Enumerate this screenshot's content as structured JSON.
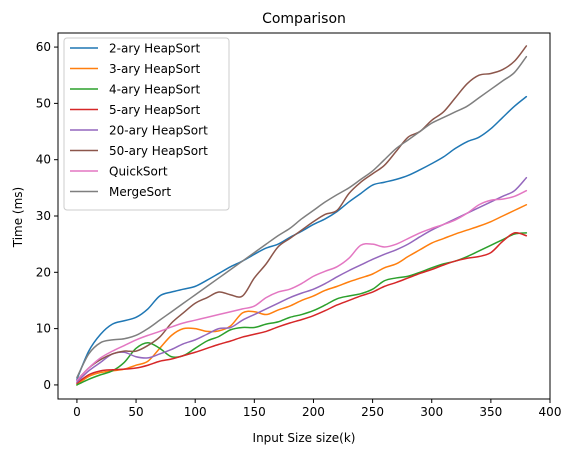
{
  "chart_data": {
    "type": "line",
    "title": "Comparison",
    "xlabel": "Input Size size(k)",
    "ylabel": "Time (ms)",
    "xlim": [
      -16,
      400
    ],
    "ylim": [
      -2.5,
      62.5
    ],
    "xticks": [
      0,
      50,
      100,
      150,
      200,
      250,
      300,
      350,
      400
    ],
    "yticks": [
      0,
      10,
      20,
      30,
      40,
      50,
      60
    ],
    "grid": false,
    "legend_position": "upper left",
    "x": [
      0,
      10,
      20,
      30,
      40,
      50,
      60,
      70,
      80,
      90,
      100,
      110,
      120,
      130,
      140,
      150,
      160,
      170,
      180,
      190,
      200,
      210,
      220,
      230,
      240,
      250,
      260,
      270,
      280,
      290,
      300,
      310,
      320,
      330,
      340,
      350,
      360,
      370,
      380
    ],
    "series": [
      {
        "name": "2-ary HeapSort",
        "color": "#1f77b4",
        "values": [
          1.0,
          6.0,
          9.0,
          10.8,
          11.4,
          12.0,
          13.5,
          15.8,
          16.5,
          17.0,
          17.5,
          18.6,
          19.8,
          21.0,
          22.0,
          23.2,
          24.3,
          25.0,
          26.2,
          27.3,
          28.5,
          29.5,
          30.8,
          32.5,
          34.0,
          35.5,
          36.0,
          36.5,
          37.2,
          38.2,
          39.3,
          40.5,
          42.0,
          43.2,
          44.0,
          45.5,
          47.5,
          49.5,
          51.2
        ]
      },
      {
        "name": "3-ary HeapSort",
        "color": "#ff7f0e",
        "values": [
          0,
          1.5,
          2.2,
          2.5,
          2.8,
          3.5,
          4.2,
          6.5,
          8.8,
          10.0,
          10.0,
          9.5,
          9.6,
          10.5,
          12.8,
          13.0,
          12.5,
          13.3,
          14.0,
          15.0,
          15.8,
          16.8,
          17.5,
          18.3,
          19.0,
          19.7,
          20.8,
          21.5,
          22.8,
          24.0,
          25.2,
          26.0,
          26.8,
          27.5,
          28.2,
          29.0,
          30.0,
          31.0,
          32.0
        ]
      },
      {
        "name": "4-ary HeapSort",
        "color": "#2ca02c",
        "values": [
          0,
          1.0,
          1.8,
          2.5,
          4.0,
          6.5,
          7.5,
          6.5,
          5.0,
          5.2,
          6.5,
          7.8,
          8.6,
          9.8,
          10.2,
          10.2,
          10.8,
          11.2,
          12.0,
          12.5,
          13.2,
          14.2,
          15.3,
          15.8,
          16.2,
          17.0,
          18.5,
          19.0,
          19.3,
          20.0,
          20.8,
          21.5,
          22.0,
          22.8,
          23.8,
          24.8,
          25.8,
          26.8,
          27.0
        ]
      },
      {
        "name": "5-ary HeapSort",
        "color": "#d62728",
        "values": [
          0.3,
          1.8,
          2.5,
          2.7,
          2.8,
          3.0,
          3.5,
          4.2,
          4.6,
          5.2,
          5.8,
          6.5,
          7.2,
          7.8,
          8.5,
          9.0,
          9.5,
          10.3,
          11.0,
          11.6,
          12.3,
          13.2,
          14.2,
          15.0,
          15.8,
          16.5,
          17.5,
          18.2,
          19.0,
          19.8,
          20.5,
          21.3,
          22.0,
          22.5,
          22.8,
          23.5,
          25.5,
          27.0,
          26.5
        ]
      },
      {
        "name": "20-ary HeapSort",
        "color": "#9467bd",
        "values": [
          0.5,
          2.5,
          4.0,
          5.5,
          5.8,
          5.0,
          4.8,
          5.5,
          6.3,
          7.3,
          8.0,
          9.0,
          10.0,
          10.2,
          11.5,
          12.5,
          13.5,
          14.5,
          15.5,
          16.3,
          17.0,
          18.0,
          19.2,
          20.3,
          21.3,
          22.3,
          23.2,
          24.0,
          25.0,
          26.3,
          27.5,
          28.5,
          29.5,
          30.5,
          31.5,
          32.5,
          33.5,
          34.5,
          36.8
        ]
      },
      {
        "name": "50-ary HeapSort",
        "color": "#8c564b",
        "values": [
          0.8,
          3.0,
          4.5,
          5.5,
          6.0,
          6.0,
          7.0,
          8.5,
          11.0,
          12.8,
          14.5,
          15.5,
          16.5,
          16.0,
          15.8,
          19.0,
          21.5,
          24.5,
          26.0,
          27.5,
          29.0,
          30.3,
          31.0,
          34.0,
          36.0,
          37.5,
          39.0,
          41.5,
          44.0,
          45.0,
          47.0,
          48.5,
          51.0,
          53.5,
          55.0,
          55.3,
          56.0,
          57.5,
          60.2
        ]
      },
      {
        "name": "QuickSort",
        "color": "#e377c2",
        "values": [
          0.8,
          3.0,
          4.8,
          6.0,
          7.0,
          8.0,
          8.8,
          9.5,
          10.3,
          11.0,
          11.5,
          12.0,
          12.5,
          13.0,
          13.5,
          14.0,
          15.5,
          16.5,
          17.0,
          18.0,
          19.3,
          20.2,
          21.0,
          22.5,
          24.8,
          25.0,
          24.5,
          25.0,
          26.0,
          27.0,
          27.8,
          28.5,
          29.3,
          30.5,
          32.0,
          32.8,
          33.0,
          33.5,
          34.5
        ]
      },
      {
        "name": "MergeSort",
        "color": "#7f7f7f",
        "values": [
          1.3,
          5.5,
          7.5,
          8.0,
          8.2,
          8.8,
          10.0,
          11.5,
          13.0,
          14.5,
          16.0,
          17.5,
          19.0,
          20.5,
          22.0,
          23.5,
          25.0,
          26.5,
          27.8,
          29.5,
          31.0,
          32.5,
          33.8,
          35.0,
          36.5,
          38.0,
          40.0,
          42.0,
          43.5,
          45.0,
          46.5,
          47.5,
          48.5,
          49.5,
          51.0,
          52.5,
          54.0,
          55.5,
          58.3
        ]
      }
    ]
  }
}
